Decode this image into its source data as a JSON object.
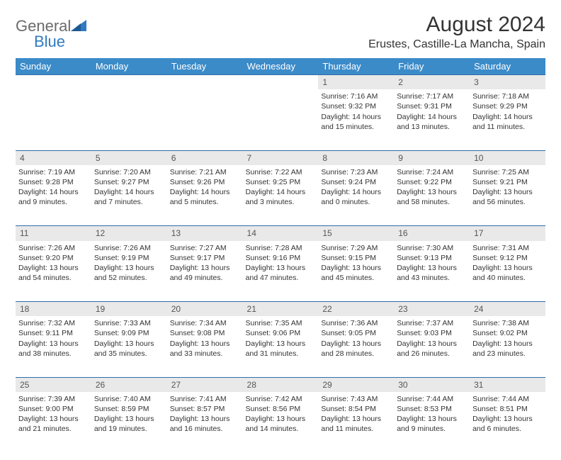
{
  "brand": {
    "word1": "General",
    "word2": "Blue"
  },
  "title": "August 2024",
  "location": "Erustes, Castille-La Mancha, Spain",
  "colors": {
    "header_bg": "#3b8bc9",
    "header_text": "#ffffff",
    "daynum_bg": "#e9e9e9",
    "border": "#2f6da8",
    "logo_gray": "#6b6b6b",
    "logo_blue": "#2f7ac0"
  },
  "weekdays": [
    "Sunday",
    "Monday",
    "Tuesday",
    "Wednesday",
    "Thursday",
    "Friday",
    "Saturday"
  ],
  "grid": [
    [
      null,
      null,
      null,
      null,
      {
        "n": "1",
        "sr": "7:16 AM",
        "ss": "9:32 PM",
        "dl": "14 hours and 15 minutes."
      },
      {
        "n": "2",
        "sr": "7:17 AM",
        "ss": "9:31 PM",
        "dl": "14 hours and 13 minutes."
      },
      {
        "n": "3",
        "sr": "7:18 AM",
        "ss": "9:29 PM",
        "dl": "14 hours and 11 minutes."
      }
    ],
    [
      {
        "n": "4",
        "sr": "7:19 AM",
        "ss": "9:28 PM",
        "dl": "14 hours and 9 minutes."
      },
      {
        "n": "5",
        "sr": "7:20 AM",
        "ss": "9:27 PM",
        "dl": "14 hours and 7 minutes."
      },
      {
        "n": "6",
        "sr": "7:21 AM",
        "ss": "9:26 PM",
        "dl": "14 hours and 5 minutes."
      },
      {
        "n": "7",
        "sr": "7:22 AM",
        "ss": "9:25 PM",
        "dl": "14 hours and 3 minutes."
      },
      {
        "n": "8",
        "sr": "7:23 AM",
        "ss": "9:24 PM",
        "dl": "14 hours and 0 minutes."
      },
      {
        "n": "9",
        "sr": "7:24 AM",
        "ss": "9:22 PM",
        "dl": "13 hours and 58 minutes."
      },
      {
        "n": "10",
        "sr": "7:25 AM",
        "ss": "9:21 PM",
        "dl": "13 hours and 56 minutes."
      }
    ],
    [
      {
        "n": "11",
        "sr": "7:26 AM",
        "ss": "9:20 PM",
        "dl": "13 hours and 54 minutes."
      },
      {
        "n": "12",
        "sr": "7:26 AM",
        "ss": "9:19 PM",
        "dl": "13 hours and 52 minutes."
      },
      {
        "n": "13",
        "sr": "7:27 AM",
        "ss": "9:17 PM",
        "dl": "13 hours and 49 minutes."
      },
      {
        "n": "14",
        "sr": "7:28 AM",
        "ss": "9:16 PM",
        "dl": "13 hours and 47 minutes."
      },
      {
        "n": "15",
        "sr": "7:29 AM",
        "ss": "9:15 PM",
        "dl": "13 hours and 45 minutes."
      },
      {
        "n": "16",
        "sr": "7:30 AM",
        "ss": "9:13 PM",
        "dl": "13 hours and 43 minutes."
      },
      {
        "n": "17",
        "sr": "7:31 AM",
        "ss": "9:12 PM",
        "dl": "13 hours and 40 minutes."
      }
    ],
    [
      {
        "n": "18",
        "sr": "7:32 AM",
        "ss": "9:11 PM",
        "dl": "13 hours and 38 minutes."
      },
      {
        "n": "19",
        "sr": "7:33 AM",
        "ss": "9:09 PM",
        "dl": "13 hours and 35 minutes."
      },
      {
        "n": "20",
        "sr": "7:34 AM",
        "ss": "9:08 PM",
        "dl": "13 hours and 33 minutes."
      },
      {
        "n": "21",
        "sr": "7:35 AM",
        "ss": "9:06 PM",
        "dl": "13 hours and 31 minutes."
      },
      {
        "n": "22",
        "sr": "7:36 AM",
        "ss": "9:05 PM",
        "dl": "13 hours and 28 minutes."
      },
      {
        "n": "23",
        "sr": "7:37 AM",
        "ss": "9:03 PM",
        "dl": "13 hours and 26 minutes."
      },
      {
        "n": "24",
        "sr": "7:38 AM",
        "ss": "9:02 PM",
        "dl": "13 hours and 23 minutes."
      }
    ],
    [
      {
        "n": "25",
        "sr": "7:39 AM",
        "ss": "9:00 PM",
        "dl": "13 hours and 21 minutes."
      },
      {
        "n": "26",
        "sr": "7:40 AM",
        "ss": "8:59 PM",
        "dl": "13 hours and 19 minutes."
      },
      {
        "n": "27",
        "sr": "7:41 AM",
        "ss": "8:57 PM",
        "dl": "13 hours and 16 minutes."
      },
      {
        "n": "28",
        "sr": "7:42 AM",
        "ss": "8:56 PM",
        "dl": "13 hours and 14 minutes."
      },
      {
        "n": "29",
        "sr": "7:43 AM",
        "ss": "8:54 PM",
        "dl": "13 hours and 11 minutes."
      },
      {
        "n": "30",
        "sr": "7:44 AM",
        "ss": "8:53 PM",
        "dl": "13 hours and 9 minutes."
      },
      {
        "n": "31",
        "sr": "7:44 AM",
        "ss": "8:51 PM",
        "dl": "13 hours and 6 minutes."
      }
    ]
  ],
  "labels": {
    "sunrise": "Sunrise: ",
    "sunset": "Sunset: ",
    "daylight": "Daylight: "
  }
}
